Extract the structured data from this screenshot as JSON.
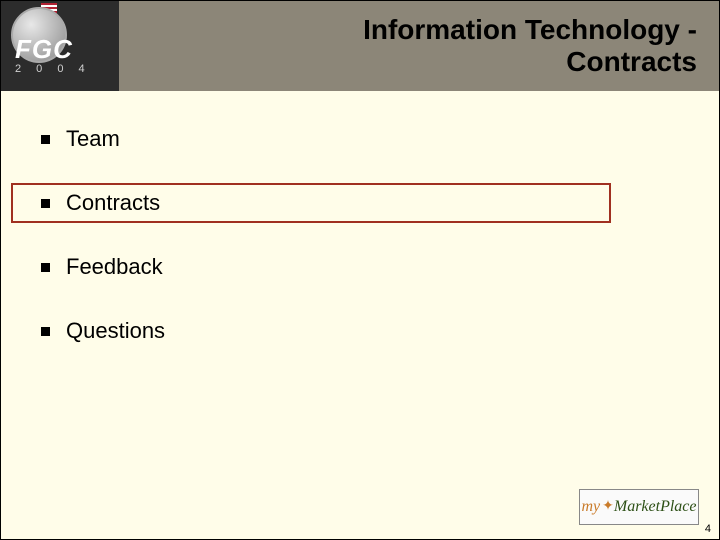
{
  "header": {
    "logo": {
      "text_main": "FGC",
      "text_year": "2 0 0 4"
    },
    "title_line1": "Information Technology -",
    "title_line2": "Contracts",
    "title_bg_color": "#8c8678",
    "logo_bg_color": "#2c2c2c"
  },
  "content": {
    "background_color": "#fffde9",
    "bullets": [
      {
        "label": "Team",
        "highlighted": false
      },
      {
        "label": "Contracts",
        "highlighted": true
      },
      {
        "label": "Feedback",
        "highlighted": false
      },
      {
        "label": "Questions",
        "highlighted": false
      }
    ],
    "highlight_border_color": "#a03020",
    "bullet_fontsize": 22
  },
  "footer": {
    "logo_my": "my",
    "logo_market": "MarketPlace",
    "page_number": "4"
  }
}
